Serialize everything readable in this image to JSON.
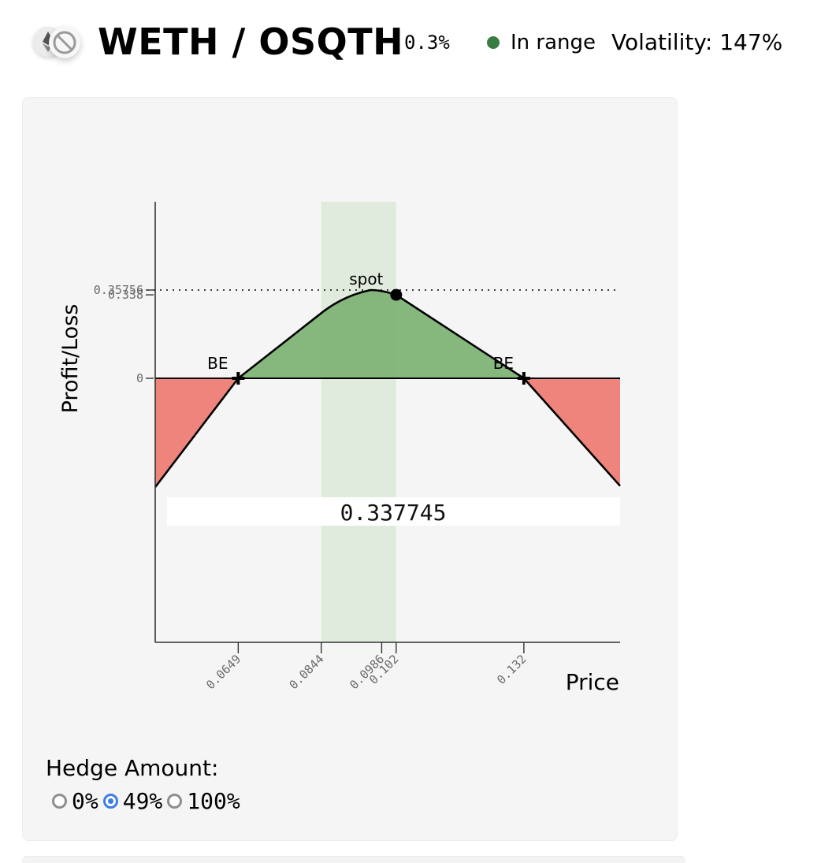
{
  "header": {
    "pair": "WETH / OSQTH",
    "fee": "0.3%",
    "range_status": "In range",
    "range_color": "#3a7d44",
    "volatility": "Volatility: 147%",
    "icons": [
      "weth-token-icon",
      "osqth-token-icon"
    ]
  },
  "chart_data": {
    "type": "area",
    "xlabel": "Price",
    "ylabel": "Profit/Loss",
    "x_ticks": [
      "0.0649",
      "0.0844",
      "0.0986",
      "0.102",
      "0.132"
    ],
    "y_ticks": [
      "0.35756",
      "0.338",
      "0"
    ],
    "spot_label": "spot",
    "breakeven_label": "BE",
    "breakevens": [
      0.0649,
      0.132
    ],
    "range": [
      0.0844,
      0.102
    ],
    "spot_price": 0.102,
    "spot_value": 0.338,
    "max_value": 0.35756,
    "hover_value": "0.337745",
    "series": [
      {
        "x": [
          0.0454,
          0.0649,
          0.0844,
          0.0896,
          0.096,
          0.102,
          0.132,
          0.1546
        ],
        "y": [
          -0.441,
          0,
          0.264,
          0.335,
          0.35756,
          0.338,
          0,
          -0.436
        ]
      }
    ],
    "colors": {
      "profit": "#7fb375",
      "loss": "#ef847c",
      "range": "#dfeadb",
      "line": "#000000"
    },
    "grid": false
  },
  "hedge": {
    "title": "Hedge Amount:",
    "options": [
      {
        "label": "0%",
        "checked": false
      },
      {
        "label": "49%",
        "checked": true
      },
      {
        "label": "100%",
        "checked": false
      }
    ]
  }
}
